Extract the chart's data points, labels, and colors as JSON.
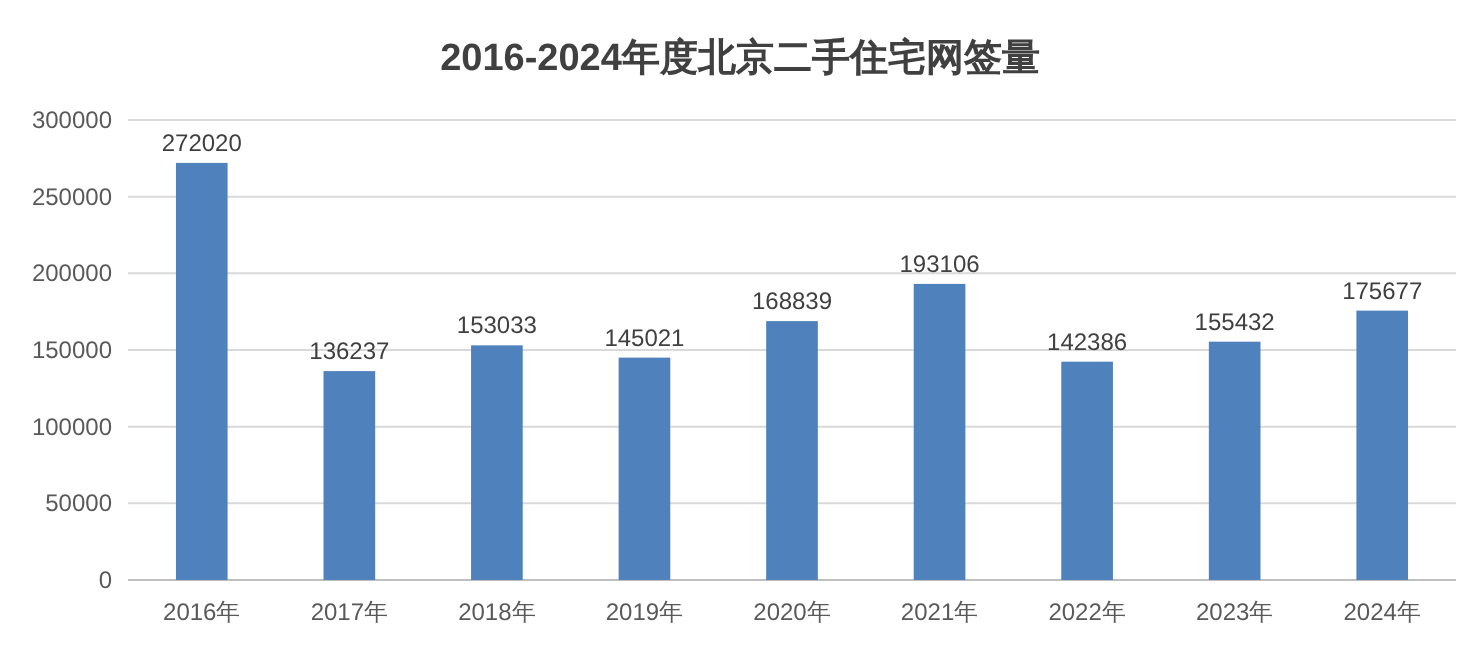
{
  "chart_data": {
    "type": "bar",
    "title": "2016-2024年度北京二手住宅网签量",
    "categories": [
      "2016年",
      "2017年",
      "2018年",
      "2019年",
      "2020年",
      "2021年",
      "2022年",
      "2023年",
      "2024年"
    ],
    "values": [
      272020,
      136237,
      153033,
      145021,
      168839,
      193106,
      142386,
      155432,
      175677
    ],
    "color": "#4f81bd",
    "ylim": [
      0,
      300000
    ],
    "yticks": [
      0,
      50000,
      100000,
      150000,
      200000,
      250000,
      300000
    ],
    "grid": "y",
    "data_labels": true
  }
}
